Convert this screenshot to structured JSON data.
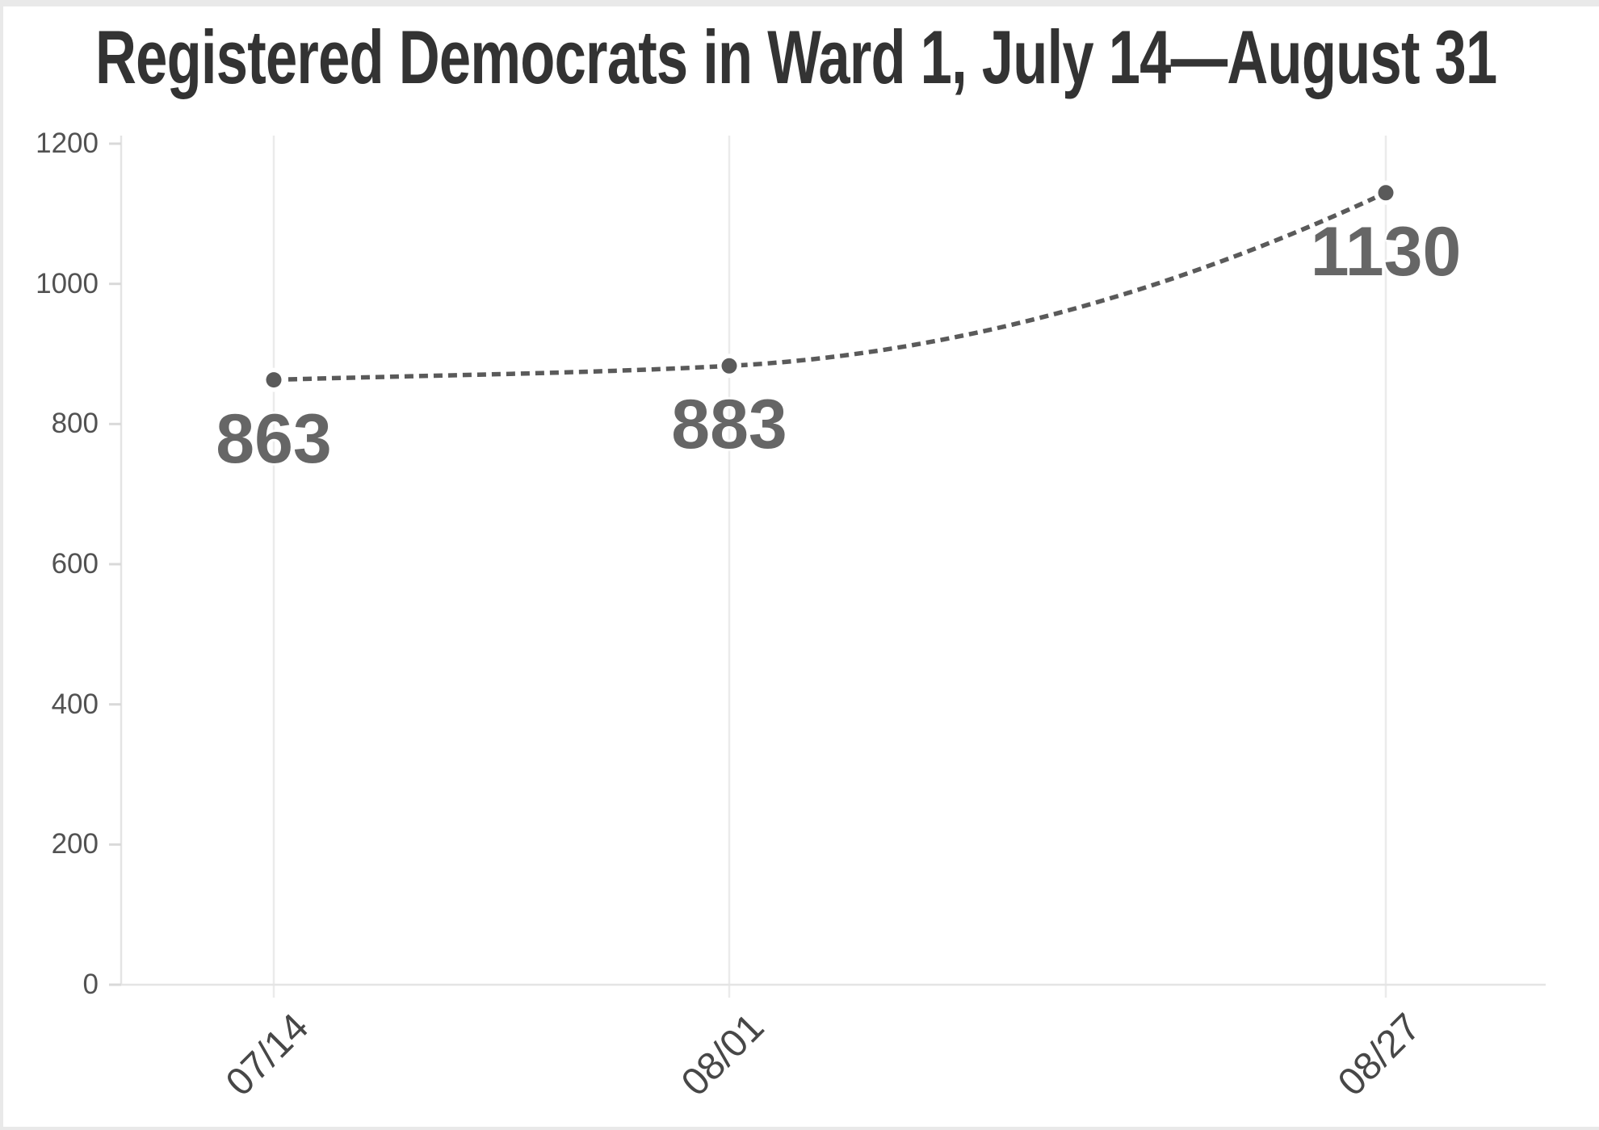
{
  "page": {
    "background_color": "#e9e9e9",
    "card_background_color": "#ffffff"
  },
  "title": "Registered Democrats in Ward 1, July 14—August 31",
  "chart_data": {
    "type": "line",
    "title": "Registered Democrats in Ward 1, July 14—August 31",
    "x": [
      "07/14",
      "08/01",
      "08/27"
    ],
    "series": [
      {
        "name": "Registered Democrats",
        "values": [
          863,
          883,
          1130
        ],
        "line_style": "dashed",
        "curve": "monotone",
        "color": "#5a5a5a"
      }
    ],
    "point_labels": [
      "863",
      "883",
      "1130"
    ],
    "xlabel": "",
    "ylabel": "",
    "ylim": [
      0,
      1200
    ],
    "yticks": [
      0,
      200,
      400,
      600,
      800,
      1000,
      1200
    ],
    "x_tick_rotation_deg": -45,
    "grid": "vertical gridline at each x category; left axis line and baseline; short y tick marks",
    "legend_position": "none"
  },
  "colors": {
    "title_text": "#333333",
    "y_axis_label_text": "#525252",
    "x_axis_label_text": "#474747",
    "value_label_text": "#666666",
    "line_and_points": "#5a5a5a",
    "gridline": "#ebebeb",
    "axis_line": "#e4e4e4",
    "tick_mark": "#d9d9d9"
  }
}
